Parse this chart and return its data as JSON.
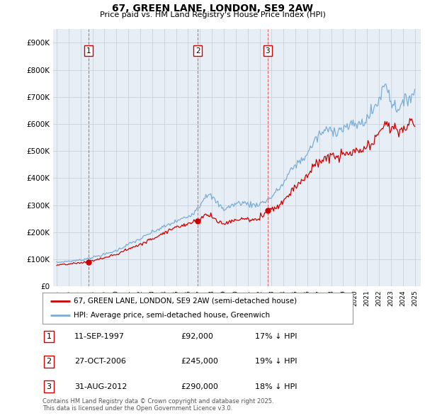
{
  "title": "67, GREEN LANE, LONDON, SE9 2AW",
  "subtitle": "Price paid vs. HM Land Registry's House Price Index (HPI)",
  "legend_line1": "67, GREEN LANE, LONDON, SE9 2AW (semi-detached house)",
  "legend_line2": "HPI: Average price, semi-detached house, Greenwich",
  "footer": "Contains HM Land Registry data © Crown copyright and database right 2025.\nThis data is licensed under the Open Government Licence v3.0.",
  "sale_color": "#cc0000",
  "hpi_color": "#7aaed6",
  "vline_color": "#dd4444",
  "chart_bg": "#e8eef5",
  "grid_color": "#c0ccd8",
  "purchases": [
    {
      "label": "1",
      "date": "11-SEP-1997",
      "price_str": "£92,000",
      "note": "17% ↓ HPI",
      "x_year": 1997.69,
      "price_val": 92000
    },
    {
      "label": "2",
      "date": "27-OCT-2006",
      "price_str": "£245,000",
      "note": "19% ↓ HPI",
      "x_year": 2006.82,
      "price_val": 245000
    },
    {
      "label": "3",
      "date": "31-AUG-2012",
      "price_str": "£290,000",
      "note": "18% ↓ HPI",
      "x_year": 2012.66,
      "price_val": 290000
    }
  ],
  "ylim": [
    0,
    950000
  ],
  "yticks": [
    0,
    100000,
    200000,
    300000,
    400000,
    500000,
    600000,
    700000,
    800000,
    900000
  ],
  "ytick_labels": [
    "£0",
    "£100K",
    "£200K",
    "£300K",
    "£400K",
    "£500K",
    "£600K",
    "£700K",
    "£800K",
    "£900K"
  ],
  "xlim_start": 1994.7,
  "xlim_end": 2025.5
}
